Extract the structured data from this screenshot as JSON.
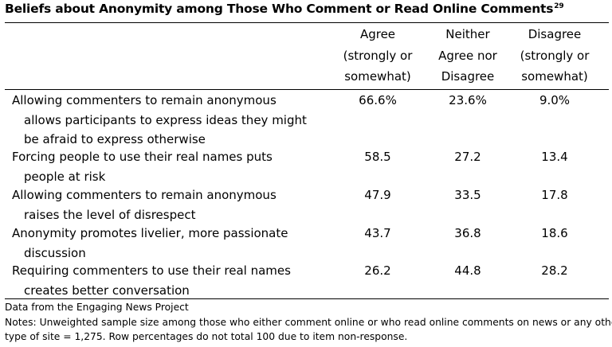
{
  "title": "Beliefs about Anonymity among Those Who Comment or Read Online Comments",
  "title_footnote": "29",
  "columns": [
    {
      "lines": [
        "Agree",
        "(strongly or",
        "somewhat)"
      ]
    },
    {
      "lines": [
        "Neither",
        "Agree nor",
        "Disagree"
      ]
    },
    {
      "lines": [
        "Disagree",
        "(strongly or",
        "somewhat)"
      ]
    }
  ],
  "rows": [
    {
      "label_lines": [
        "Allowing commenters to remain anonymous",
        "allows participants to express ideas they might",
        "be afraid to express otherwise"
      ],
      "values": [
        "66.6%",
        "23.6%",
        "9.0%"
      ]
    },
    {
      "label_lines": [
        "Forcing people to use their real names puts",
        "people at risk"
      ],
      "values": [
        "58.5",
        "27.2",
        "13.4"
      ]
    },
    {
      "label_lines": [
        "Allowing commenters to remain anonymous",
        "raises the level of disrespect"
      ],
      "values": [
        "47.9",
        "33.5",
        "17.8"
      ]
    },
    {
      "label_lines": [
        "Anonymity promotes livelier, more passionate",
        "discussion"
      ],
      "values": [
        "43.7",
        "36.8",
        "18.6"
      ]
    },
    {
      "label_lines": [
        "Requiring commenters to use their real names",
        "creates better conversation"
      ],
      "values": [
        "26.2",
        "44.8",
        "28.2"
      ]
    }
  ],
  "source": "Data from the Engaging News Project",
  "notes_lines": [
    "Notes: Unweighted sample size among those who either comment online or who read online comments on news or any other",
    "type of site = 1,275. Row percentages do not total 100 due to item non-response."
  ]
}
